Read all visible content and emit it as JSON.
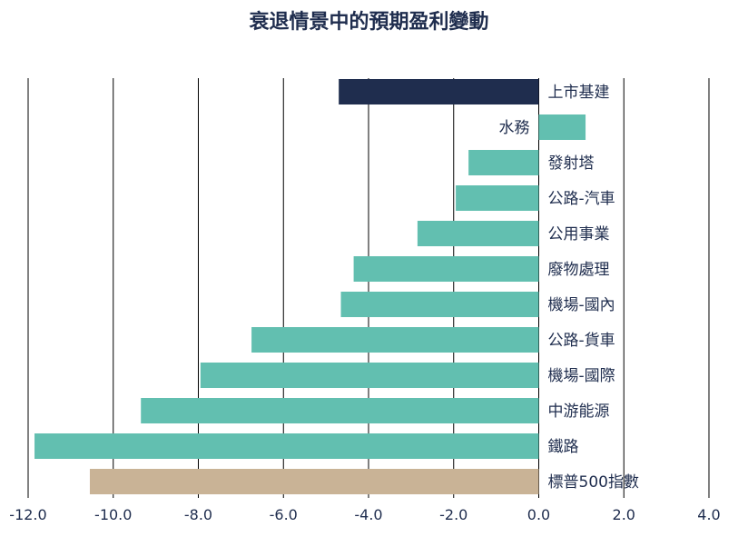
{
  "colors": {
    "highlight": "#1f2d4e",
    "series": "#62bfb0",
    "benchmark": "#c9b396",
    "text": "#1f2d4e",
    "gridline": "#000000"
  },
  "chart_data": {
    "type": "bar",
    "orientation": "horizontal",
    "title": "衰退情景中的預期盈利變動",
    "xlabel": "",
    "ylabel": "",
    "xlim": [
      -12.0,
      4.0
    ],
    "xticks": [
      "-12.0",
      "-10.0",
      "-8.0",
      "-6.0",
      "-4.0",
      "-2.0",
      "0.0",
      "2.0",
      "4.0"
    ],
    "grid": true,
    "categories": [
      "上市基建",
      "水務",
      "發射塔",
      "公路-汽車",
      "公用事業",
      "廢物處理",
      "機場-國內",
      "公路-貨車",
      "機場-國際",
      "中游能源",
      "鐵路",
      "標普500指數"
    ],
    "values": [
      -4.7,
      1.1,
      -1.65,
      -1.95,
      -2.85,
      -4.35,
      -4.65,
      -6.75,
      -7.95,
      -9.35,
      -11.85,
      -10.55
    ],
    "bar_color_keys": [
      "highlight",
      "series",
      "series",
      "series",
      "series",
      "series",
      "series",
      "series",
      "series",
      "series",
      "series",
      "benchmark"
    ]
  }
}
